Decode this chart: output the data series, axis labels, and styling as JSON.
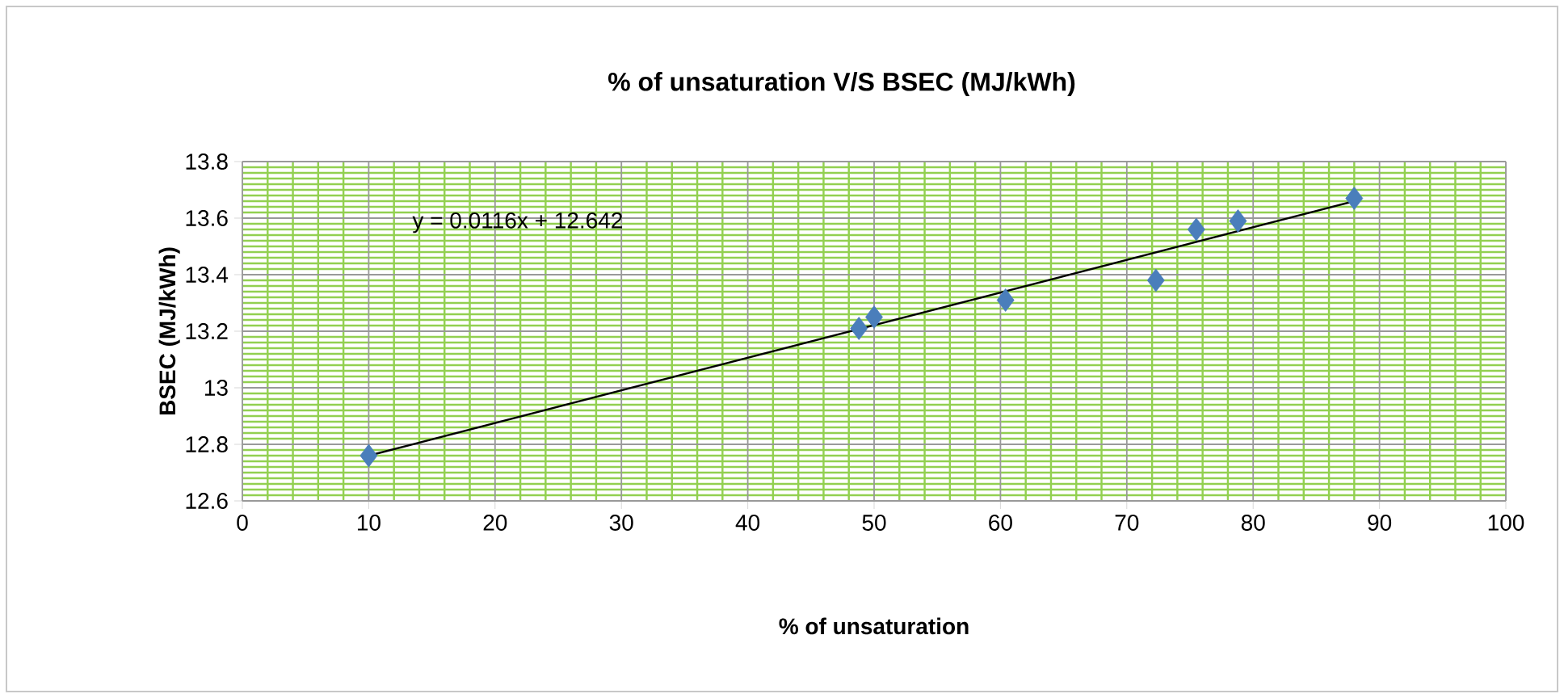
{
  "chart_data": {
    "type": "scatter",
    "title": "% of unsaturation V/S BSEC (MJ/kWh)",
    "xlabel": "% of unsaturation",
    "ylabel": "BSEC (MJ/kWh)",
    "annotations": [
      "y = 0.0116x + 12.642"
    ],
    "xlim": [
      0,
      100
    ],
    "xticks": [
      0,
      {
        "value": 2,
        "label": null
      },
      {
        "value": 4,
        "label": null
      },
      {
        "value": 6,
        "label": null
      },
      {
        "value": 8,
        "label": null
      },
      10,
      {
        "value": 12,
        "label": null
      },
      {
        "value": 14,
        "label": null
      },
      {
        "value": 16,
        "label": null
      },
      {
        "value": 18,
        "label": null
      },
      20,
      {
        "value": 22,
        "label": null
      },
      {
        "value": 24,
        "label": null
      },
      {
        "value": 26,
        "label": null
      },
      {
        "value": 28,
        "label": null
      },
      30,
      {
        "value": 32,
        "label": null
      },
      {
        "value": 34,
        "label": null
      },
      {
        "value": 36,
        "label": null
      },
      {
        "value": 38,
        "label": null
      },
      40,
      {
        "value": 42,
        "label": null
      },
      {
        "value": 44,
        "label": null
      },
      {
        "value": 46,
        "label": null
      },
      {
        "value": 48,
        "label": null
      },
      50,
      {
        "value": 52,
        "label": null
      },
      {
        "value": 54,
        "label": null
      },
      {
        "value": 56,
        "label": null
      },
      {
        "value": 58,
        "label": null
      },
      60,
      {
        "value": 62,
        "label": null
      },
      {
        "value": 64,
        "label": null
      },
      {
        "value": 66,
        "label": null
      },
      {
        "value": 68,
        "label": null
      },
      70,
      {
        "value": 72,
        "label": null
      },
      {
        "value": 74,
        "label": null
      },
      {
        "value": 76,
        "label": null
      },
      {
        "value": 78,
        "label": null
      },
      80,
      {
        "value": 82,
        "label": null
      },
      {
        "value": 84,
        "label": null
      },
      {
        "value": 86,
        "label": null
      },
      {
        "value": 88,
        "label": null
      },
      90,
      {
        "value": 92,
        "label": null
      },
      {
        "value": 94,
        "label": null
      },
      {
        "value": 96,
        "label": null
      },
      {
        "value": 98,
        "label": null
      },
      100
    ],
    "ylim": [
      12.6,
      13.8
    ],
    "yticks": [
      {
        "value": 12.6,
        "label": "12.6"
      },
      {
        "value": 12.62,
        "label": null
      },
      {
        "value": 12.64,
        "label": null
      },
      {
        "value": 12.66,
        "label": null
      },
      {
        "value": 12.68,
        "label": null
      },
      {
        "value": 12.7,
        "label": null
      },
      {
        "value": 12.72,
        "label": null
      },
      {
        "value": 12.74,
        "label": null
      },
      {
        "value": 12.76,
        "label": null
      },
      {
        "value": 12.78,
        "label": null
      },
      {
        "value": 12.8,
        "label": "12.8"
      },
      {
        "value": 12.82,
        "label": null
      },
      {
        "value": 12.84,
        "label": null
      },
      {
        "value": 12.86,
        "label": null
      },
      {
        "value": 12.88,
        "label": null
      },
      {
        "value": 12.9,
        "label": null
      },
      {
        "value": 12.92,
        "label": null
      },
      {
        "value": 12.94,
        "label": null
      },
      {
        "value": 12.96,
        "label": null
      },
      {
        "value": 12.98,
        "label": null
      },
      {
        "value": 13,
        "label": "13"
      },
      {
        "value": 13.02,
        "label": null
      },
      {
        "value": 13.04,
        "label": null
      },
      {
        "value": 13.06,
        "label": null
      },
      {
        "value": 13.08,
        "label": null
      },
      {
        "value": 13.1,
        "label": null
      },
      {
        "value": 13.12,
        "label": null
      },
      {
        "value": 13.14,
        "label": null
      },
      {
        "value": 13.16,
        "label": null
      },
      {
        "value": 13.18,
        "label": null
      },
      {
        "value": 13.2,
        "label": "13.2"
      },
      {
        "value": 13.22,
        "label": null
      },
      {
        "value": 13.24,
        "label": null
      },
      {
        "value": 13.26,
        "label": null
      },
      {
        "value": 13.28,
        "label": null
      },
      {
        "value": 13.3,
        "label": null
      },
      {
        "value": 13.32,
        "label": null
      },
      {
        "value": 13.34,
        "label": null
      },
      {
        "value": 13.36,
        "label": null
      },
      {
        "value": 13.38,
        "label": null
      },
      {
        "value": 13.4,
        "label": "13.4"
      },
      {
        "value": 13.42,
        "label": null
      },
      {
        "value": 13.44,
        "label": null
      },
      {
        "value": 13.46,
        "label": null
      },
      {
        "value": 13.48,
        "label": null
      },
      {
        "value": 13.5,
        "label": null
      },
      {
        "value": 13.52,
        "label": null
      },
      {
        "value": 13.54,
        "label": null
      },
      {
        "value": 13.56,
        "label": null
      },
      {
        "value": 13.58,
        "label": null
      },
      {
        "value": 13.6,
        "label": "13.6"
      },
      {
        "value": 13.62,
        "label": null
      },
      {
        "value": 13.64,
        "label": null
      },
      {
        "value": 13.66,
        "label": null
      },
      {
        "value": 13.68,
        "label": null
      },
      {
        "value": 13.7,
        "label": null
      },
      {
        "value": 13.72,
        "label": null
      },
      {
        "value": 13.74,
        "label": null
      },
      {
        "value": 13.76,
        "label": null
      },
      {
        "value": 13.78,
        "label": null
      },
      {
        "value": 13.8,
        "label": "13.8"
      }
    ],
    "grid": true,
    "series": [
      {
        "color": "#4a7ebb",
        "marker": "diamond",
        "x": [
          10,
          48.8,
          50,
          60.4,
          72.3,
          75.5,
          78.8,
          88
        ],
        "values": [
          12.76,
          13.21,
          13.25,
          13.31,
          13.38,
          13.56,
          13.59,
          13.67
        ]
      },
      {
        "type": "line",
        "color": "#000000",
        "marker": "none",
        "line_style": "solid",
        "x": [
          10,
          88
        ],
        "values": [
          12.76,
          13.66
        ]
      }
    ]
  }
}
